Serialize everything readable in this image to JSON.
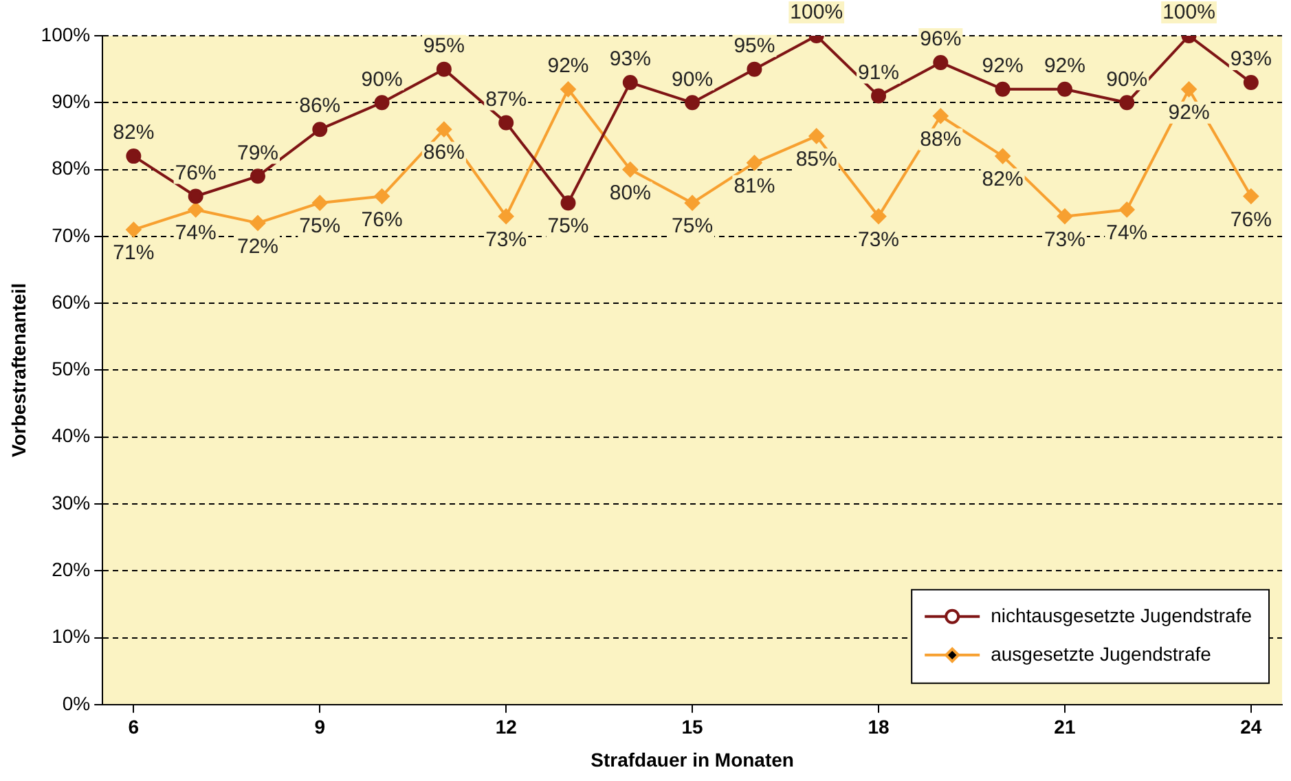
{
  "chart_data": {
    "type": "line",
    "xlabel": "Strafdauer in Monaten",
    "ylabel": "Vorbestraftenanteil",
    "x": [
      6,
      7,
      8,
      9,
      10,
      11,
      12,
      13,
      14,
      15,
      16,
      17,
      18,
      19,
      20,
      21,
      22,
      23,
      24
    ],
    "xlim": [
      5.5,
      24.5
    ],
    "xticks": [
      6,
      9,
      12,
      15,
      18,
      21,
      24
    ],
    "ylim": [
      0,
      100
    ],
    "yticks": [
      {
        "value": 0,
        "label": "0%"
      },
      {
        "value": 10,
        "label": "10%"
      },
      {
        "value": 20,
        "label": "20%"
      },
      {
        "value": 30,
        "label": "30%"
      },
      {
        "value": 40,
        "label": "40%"
      },
      {
        "value": 50,
        "label": "50%"
      },
      {
        "value": 60,
        "label": "60%"
      },
      {
        "value": 70,
        "label": "70%"
      },
      {
        "value": 80,
        "label": "80%"
      },
      {
        "value": 90,
        "label": "90%"
      },
      {
        "value": 100,
        "label": "100%"
      }
    ],
    "grid": "y",
    "legend": "bottom right",
    "series": [
      {
        "name": "nichtausgesetzte Jugendstrafe",
        "color": "#7f1515",
        "marker": "circle",
        "values": [
          82,
          76,
          79,
          86,
          90,
          95,
          87,
          75,
          93,
          90,
          95,
          100,
          91,
          96,
          92,
          92,
          90,
          100,
          93
        ],
        "value_labels": [
          "82%",
          "76%",
          "79%",
          "86%",
          "90%",
          "95%",
          "87%",
          "75%",
          "93%",
          "90%",
          "95%",
          "100%",
          "91%",
          "96%",
          "92%",
          "92%",
          "90%",
          "100%",
          "93%"
        ]
      },
      {
        "name": "ausgesetzte Jugendstrafe",
        "color": "#f7a030",
        "marker": "diamond",
        "values": [
          71,
          74,
          72,
          75,
          76,
          86,
          73,
          92,
          80,
          75,
          81,
          85,
          73,
          88,
          82,
          73,
          74,
          92,
          76
        ],
        "value_labels": [
          "71%",
          "74%",
          "72%",
          "75%",
          "76%",
          "86%",
          "73%",
          "92%",
          "80%",
          "75%",
          "81%",
          "85%",
          "73%",
          "88%",
          "82%",
          "73%",
          "74%",
          "92%",
          "76%"
        ]
      }
    ]
  }
}
